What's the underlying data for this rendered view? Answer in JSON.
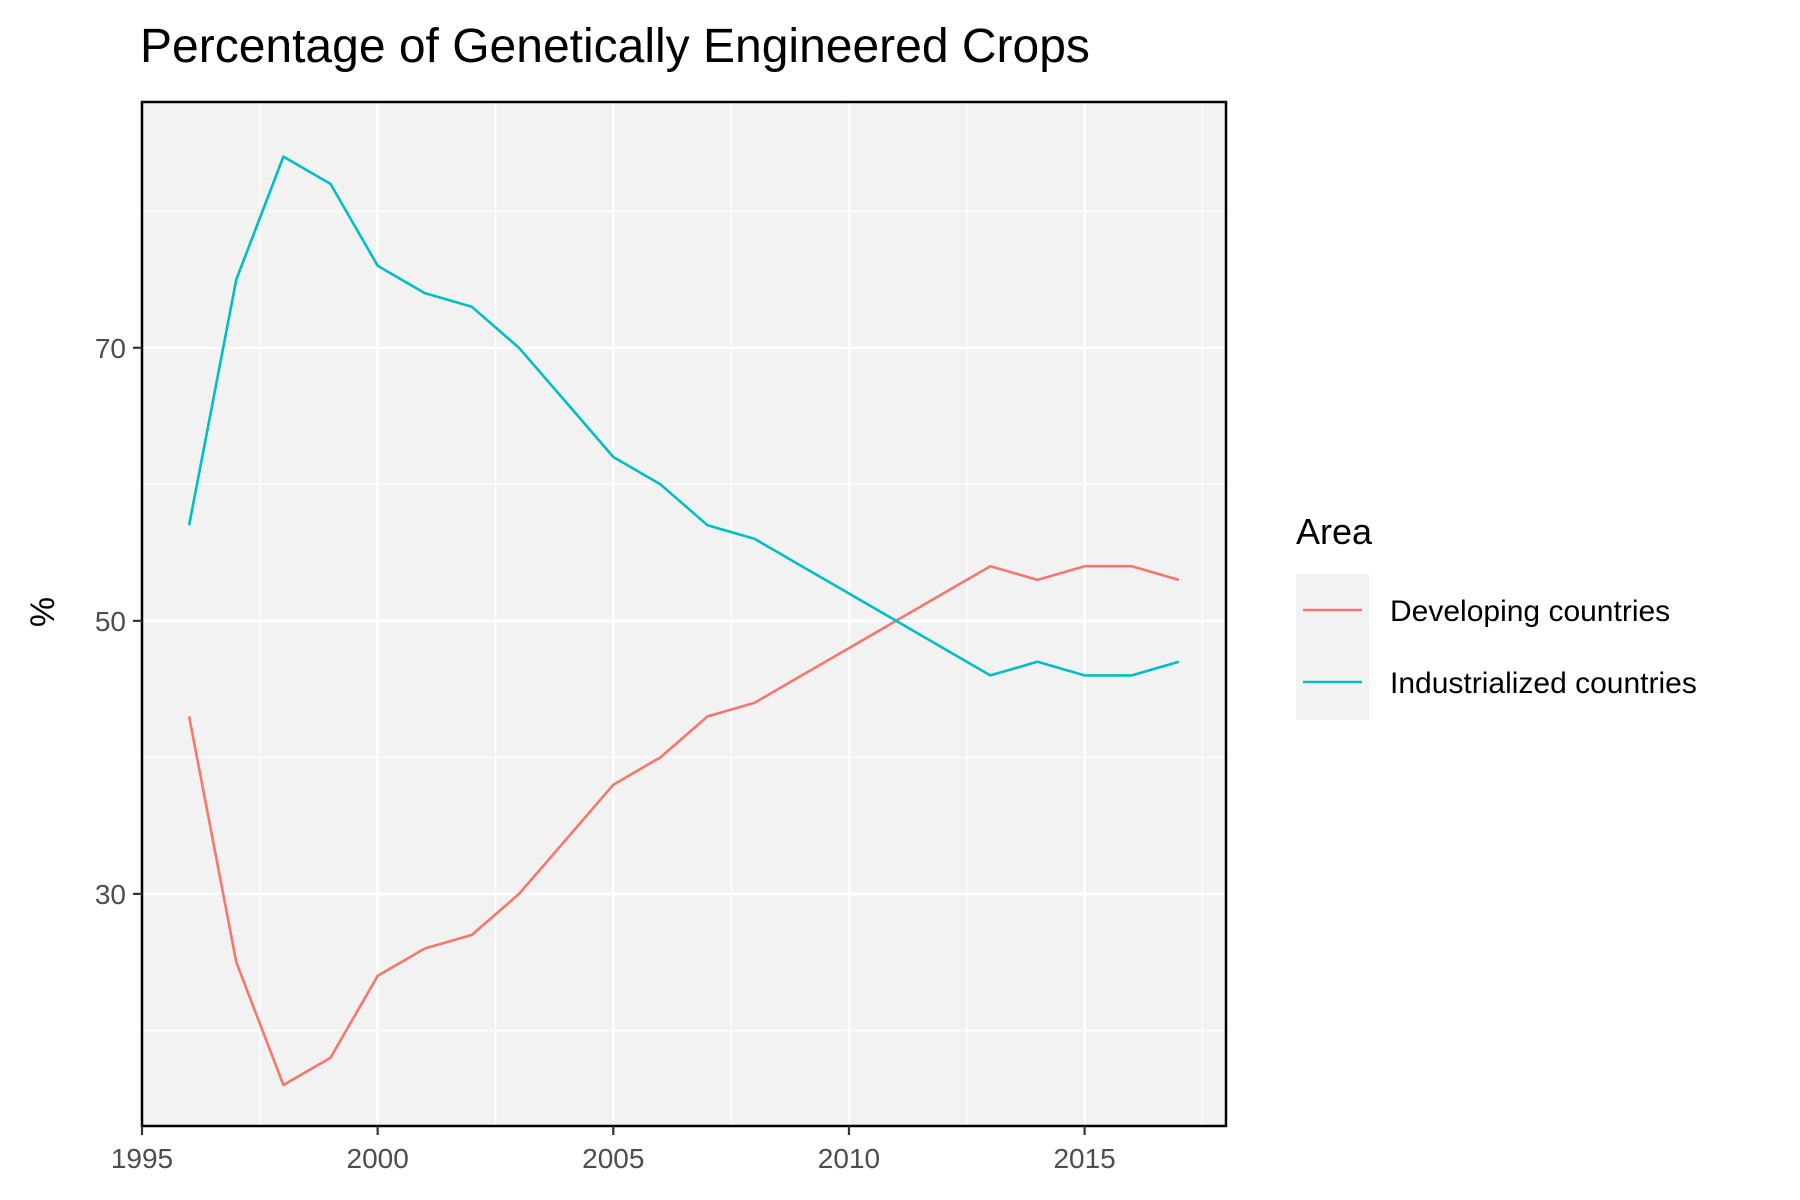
{
  "chart_data": {
    "type": "line",
    "title": "Percentage of Genetically Engineered Crops",
    "xlabel": "",
    "ylabel": "%",
    "xlim": [
      1995,
      2018
    ],
    "ylim": [
      13,
      88
    ],
    "x_ticks": [
      "1995",
      "2000",
      "2005",
      "2010",
      "2015"
    ],
    "y_ticks": [
      "30",
      "50",
      "70"
    ],
    "grid": true,
    "legend": {
      "title": "Area",
      "position": "right"
    },
    "x": [
      1996,
      1997,
      1998,
      1999,
      2000,
      2001,
      2002,
      2003,
      2004,
      2005,
      2006,
      2007,
      2008,
      2009,
      2010,
      2011,
      2012,
      2013,
      2014,
      2015,
      2016,
      2017
    ],
    "series": [
      {
        "name": "Developing countries",
        "color": "#F8766D",
        "values": [
          43,
          25,
          16,
          18,
          24,
          26,
          27,
          30,
          34,
          38,
          40,
          43,
          44,
          46,
          48,
          50,
          52,
          54,
          53,
          54,
          54,
          53
        ]
      },
      {
        "name": "Industrialized countries",
        "color": "#00BFC4",
        "values": [
          57,
          75,
          84,
          82,
          76,
          74,
          73,
          70,
          66,
          62,
          60,
          57,
          56,
          54,
          52,
          50,
          48,
          46,
          47,
          46,
          46,
          47
        ]
      }
    ]
  }
}
